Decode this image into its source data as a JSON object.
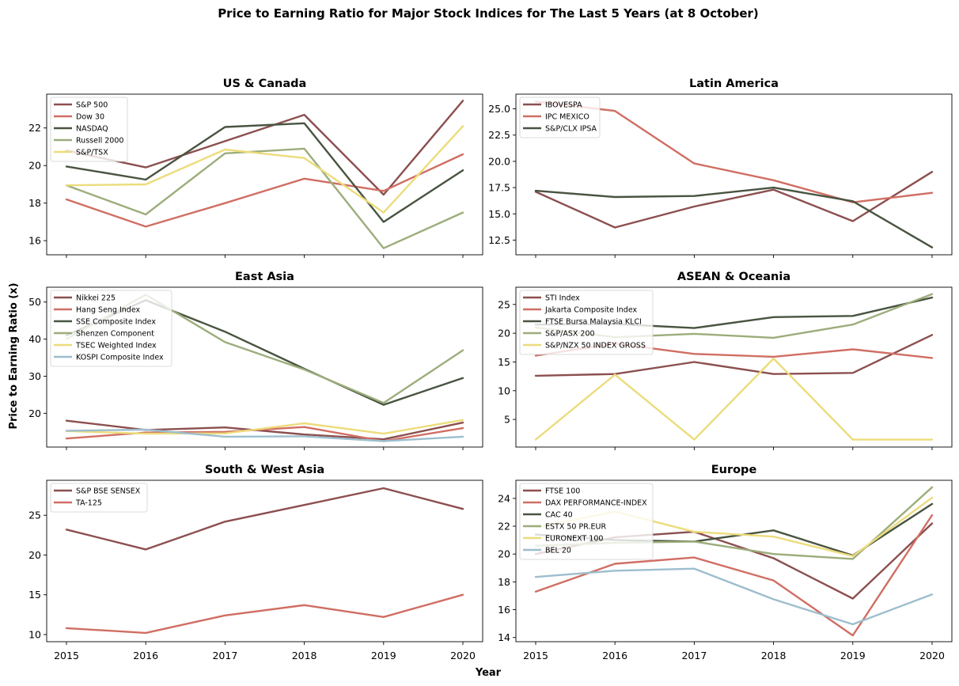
{
  "figure": {
    "title": "Price to Earning Ratio for Major Stock Indices for The Last 5 Years (at 8 October)",
    "xlabel": "Year",
    "ylabel": "Price to Earning Ratio (x)"
  },
  "palette": [
    "#8c4f4f",
    "#d06e63",
    "#485440",
    "#9cad7b",
    "#ecdc7c",
    "#9dbecd"
  ],
  "chart_data": [
    {
      "type": "line",
      "title": "US & Canada",
      "x": [
        2015,
        2016,
        2017,
        2018,
        2019,
        2020
      ],
      "ylim": [
        15.25,
        23.8
      ],
      "yticks": [
        16,
        18,
        20,
        22
      ],
      "legend": "top-left",
      "series": [
        {
          "name": "S&P 500",
          "values": [
            20.8,
            19.9,
            21.3,
            22.7,
            18.45,
            23.45
          ]
        },
        {
          "name": "Dow 30",
          "values": [
            18.2,
            16.75,
            18.0,
            19.3,
            18.65,
            20.6
          ]
        },
        {
          "name": "NASDAQ",
          "values": [
            19.95,
            19.25,
            22.05,
            22.25,
            17.0,
            19.75
          ]
        },
        {
          "name": "Russell 2000",
          "values": [
            18.95,
            17.4,
            20.65,
            20.9,
            15.6,
            17.5
          ]
        },
        {
          "name": "S&P/TSX",
          "values": [
            18.95,
            19.0,
            20.85,
            20.4,
            17.5,
            22.1
          ]
        }
      ]
    },
    {
      "type": "line",
      "title": "Latin America",
      "x": [
        2015,
        2016,
        2017,
        2018,
        2019,
        2020
      ],
      "ylim": [
        11.1,
        26.4
      ],
      "yticks": [
        12.5,
        15.0,
        17.5,
        20.0,
        22.5,
        25.0
      ],
      "yticklabels": [
        "12.5",
        "15.0",
        "17.5",
        "20.0",
        "22.5",
        "25.0"
      ],
      "legend": "top-left",
      "series": [
        {
          "name": "IBOVESPA",
          "values": [
            17.1,
            13.7,
            15.7,
            17.3,
            14.3,
            19.0
          ]
        },
        {
          "name": "IPC MEXICO",
          "values": [
            25.7,
            24.8,
            19.8,
            18.2,
            16.1,
            17.0
          ]
        },
        {
          "name": "S&P/CLX IPSA",
          "values": [
            17.2,
            16.6,
            16.7,
            17.5,
            16.2,
            11.8
          ]
        }
      ]
    },
    {
      "type": "line",
      "title": "East Asia",
      "x": [
        2015,
        2016,
        2017,
        2018,
        2019,
        2020
      ],
      "ylim": [
        10.9,
        54.0
      ],
      "yticks": [
        20,
        30,
        40,
        50
      ],
      "legend": "top-left",
      "series": [
        {
          "name": "Nikkei 225",
          "values": [
            18.0,
            15.5,
            16.2,
            14.3,
            13.0,
            17.5
          ]
        },
        {
          "name": "Hang Seng Index",
          "values": [
            13.2,
            14.8,
            15.0,
            16.3,
            12.5,
            16.0
          ]
        },
        {
          "name": "SSE Composite Index",
          "values": [
            41.0,
            50.5,
            42.0,
            32.0,
            22.3,
            29.5
          ]
        },
        {
          "name": "Shenzen Component",
          "values": [
            40.0,
            52.0,
            39.2,
            31.8,
            22.8,
            37.0
          ]
        },
        {
          "name": "TSEC Weighted Index",
          "values": [
            15.2,
            14.5,
            14.6,
            17.3,
            14.5,
            18.2
          ]
        },
        {
          "name": "KOSPI Composite Index",
          "values": [
            15.3,
            15.6,
            13.7,
            13.8,
            12.5,
            13.7
          ]
        }
      ]
    },
    {
      "type": "line",
      "title": "ASEAN & Oceania",
      "x": [
        2015,
        2016,
        2017,
        2018,
        2019,
        2020
      ],
      "ylim": [
        0.2,
        28.0
      ],
      "yticks": [
        5,
        10,
        15,
        20,
        25
      ],
      "legend": "top-left",
      "series": [
        {
          "name": "STI Index",
          "values": [
            12.6,
            12.9,
            15.0,
            12.9,
            13.1,
            19.7
          ]
        },
        {
          "name": "Jakarta Composite Index",
          "values": [
            16.1,
            18.2,
            16.4,
            15.9,
            17.2,
            15.7
          ]
        },
        {
          "name": "FTSE Bursa Malaysia KLCI",
          "values": [
            21.5,
            21.6,
            20.9,
            22.8,
            23.0,
            26.2
          ]
        },
        {
          "name": "S&P/ASX 200",
          "values": [
            21.0,
            19.3,
            19.9,
            19.2,
            21.5,
            26.8
          ]
        },
        {
          "name": "S&P/NZX 50 INDEX GROSS",
          "values": [
            1.5,
            12.8,
            1.5,
            15.6,
            1.5,
            1.5
          ]
        }
      ]
    },
    {
      "type": "line",
      "title": "South & West Asia",
      "x": [
        2015,
        2016,
        2017,
        2018,
        2019,
        2020
      ],
      "ylim": [
        9.1,
        29.4
      ],
      "yticks": [
        10,
        15,
        20,
        25
      ],
      "legend": "top-left",
      "series": [
        {
          "name": "S&P BSE SENSEX",
          "values": [
            23.2,
            20.7,
            24.2,
            26.3,
            28.4,
            25.8
          ]
        },
        {
          "name": "TA-125",
          "values": [
            10.8,
            10.2,
            12.4,
            13.7,
            12.2,
            15.0
          ]
        }
      ]
    },
    {
      "type": "line",
      "title": "Europe",
      "x": [
        2015,
        2016,
        2017,
        2018,
        2019,
        2020
      ],
      "ylim": [
        13.7,
        25.3
      ],
      "yticks": [
        14,
        16,
        18,
        20,
        22,
        24
      ],
      "legend": "top-left",
      "series": [
        {
          "name": "FTSE 100",
          "values": [
            20.0,
            21.2,
            21.6,
            19.7,
            16.8,
            22.2
          ]
        },
        {
          "name": "DAX PERFORMANCE-INDEX",
          "values": [
            17.3,
            19.3,
            19.75,
            18.1,
            14.15,
            22.8
          ]
        },
        {
          "name": "CAC 40",
          "values": [
            21.4,
            21.0,
            20.9,
            21.7,
            19.9,
            23.6
          ]
        },
        {
          "name": "ESTX 50 PR.EUR",
          "values": [
            20.6,
            20.8,
            20.9,
            20.0,
            19.65,
            24.8
          ]
        },
        {
          "name": "EURONEXT 100",
          "values": [
            21.9,
            23.05,
            21.6,
            21.25,
            19.85,
            24.05
          ]
        },
        {
          "name": "BEL 20",
          "values": [
            18.35,
            18.8,
            18.95,
            16.75,
            14.95,
            17.1
          ]
        }
      ]
    }
  ]
}
